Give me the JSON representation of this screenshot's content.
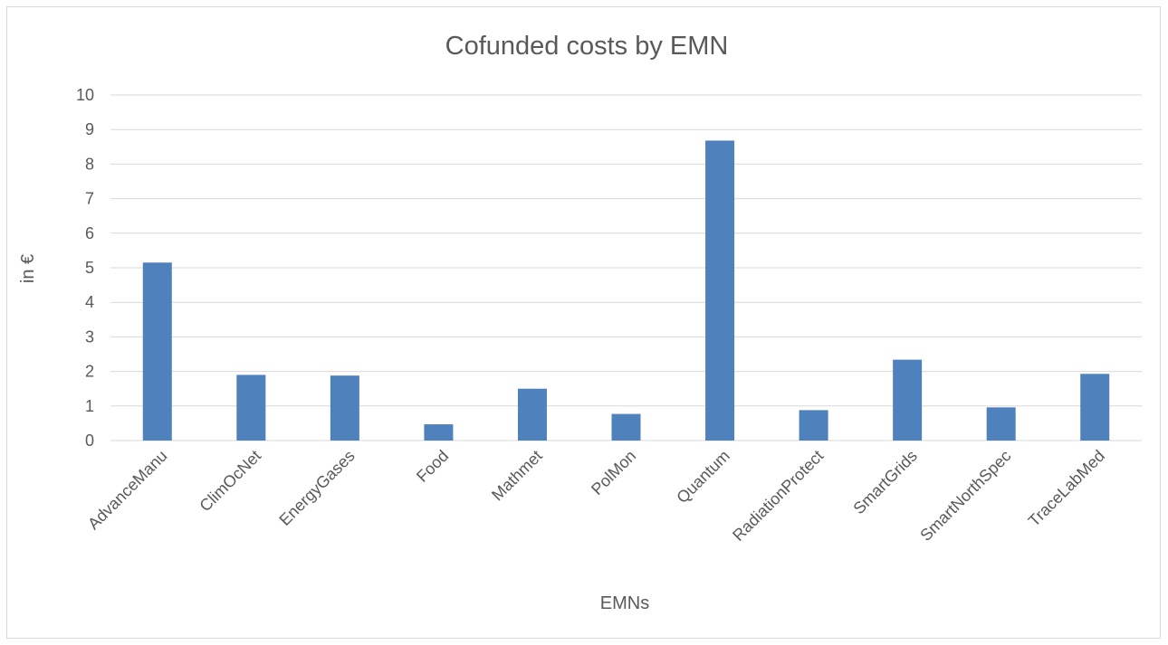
{
  "chart_data": {
    "type": "bar",
    "title": "Cofunded costs by EMN",
    "xlabel": "EMNs",
    "ylabel": "in €",
    "categories": [
      "AdvanceManu",
      "ClimOcNet",
      "EnergyGases",
      "Food",
      "Mathmet",
      "PolMon",
      "Quantum",
      "RadiationProtect",
      "SmartGrids",
      "SmartNorthSpec",
      "TraceLabMed"
    ],
    "values": [
      5.15,
      1.9,
      1.88,
      0.47,
      1.5,
      0.77,
      8.68,
      0.88,
      2.34,
      0.96,
      1.93
    ],
    "ylim": [
      0,
      10
    ],
    "yticks": [
      "0",
      "1",
      "2",
      "3",
      "4",
      "5",
      "6",
      "7",
      "8",
      "9",
      "10"
    ],
    "grid": true,
    "legend": "none",
    "bar_color": "#4f81bd"
  }
}
